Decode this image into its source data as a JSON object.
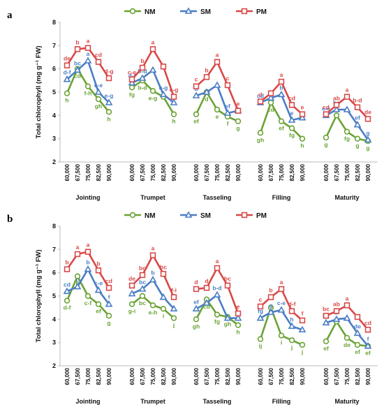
{
  "chart_data": [
    {
      "type": "line",
      "panel_label": "a",
      "ylabel": "Total chlorophyll (mg g⁻¹ FW)",
      "ylim": [
        2,
        8
      ],
      "yticks": [
        2,
        3,
        4,
        5,
        6,
        7,
        8
      ],
      "stages": [
        "Jointing",
        "Trumpet",
        "Tasseling",
        "Filling",
        "Maturity"
      ],
      "x": [
        "60,000",
        "67,500",
        "75,000",
        "82,500",
        "90,000"
      ],
      "legend": [
        "NM",
        "SM",
        "PM"
      ],
      "colors": {
        "NM": "#6aa334",
        "SM": "#4a7ec4",
        "PM": "#d94848"
      },
      "series": [
        {
          "name": "NM",
          "stages": [
            {
              "values": [
                4.95,
                6.0,
                5.25,
                4.7,
                4.15
              ],
              "letters": [
                "h",
                "cd",
                "f-h",
                "gh",
                "h"
              ]
            },
            {
              "values": [
                5.2,
                5.5,
                5.05,
                4.8,
                4.05
              ],
              "letters": [
                "fg",
                "b-d",
                "e-g",
                "",
                "h"
              ]
            },
            {
              "values": [
                4.05,
                5.0,
                4.25,
                3.95,
                3.75
              ],
              "letters": [
                "ef",
                "d",
                "e",
                "f",
                "g"
              ]
            },
            {
              "values": [
                3.25,
                4.55,
                3.75,
                3.45,
                3.0
              ],
              "letters": [
                "gh",
                "cd",
                "ef",
                "fg",
                "h"
              ]
            },
            {
              "values": [
                3.05,
                4.0,
                3.3,
                3.0,
                2.9
              ],
              "letters": [
                "g",
                "",
                "fg",
                "g",
                "g"
              ]
            }
          ]
        },
        {
          "name": "SM",
          "stages": [
            {
              "values": [
                5.55,
                5.95,
                6.35,
                5.0,
                4.55
              ],
              "letters": [
                "d-f",
                "bc",
                "a",
                "c-e",
                "e-g"
              ]
            },
            {
              "values": [
                5.4,
                5.6,
                5.95,
                4.9,
                4.55
              ],
              "letters": [
                "d-f",
                "b-d",
                "",
                "e-g",
                ""
              ]
            },
            {
              "values": [
                4.85,
                5.0,
                5.3,
                4.1,
                4.2
              ],
              "letters": [
                "d",
                "",
                "",
                "ef",
                ""
              ]
            },
            {
              "values": [
                4.55,
                4.75,
                4.9,
                3.8,
                3.9
              ],
              "letters": [
                "cd",
                "",
                "b",
                "e",
                ""
              ]
            },
            {
              "values": [
                4.0,
                4.25,
                4.25,
                3.6,
                2.95
              ],
              "letters": [
                "c-e",
                "bc",
                "",
                "ef",
                "g"
              ]
            }
          ]
        },
        {
          "name": "PM",
          "stages": [
            {
              "values": [
                6.15,
                6.85,
                6.9,
                6.3,
                5.6
              ],
              "letters": [
                "de",
                "b",
                "a",
                "cd",
                "d-g"
              ]
            },
            {
              "values": [
                5.55,
                6.05,
                6.85,
                6.1,
                4.8
              ],
              "letters": [
                "c-e",
                "b",
                "a",
                "",
                "e-g"
              ]
            },
            {
              "values": [
                5.25,
                5.65,
                6.3,
                5.3,
                4.2
              ],
              "letters": [
                "c",
                "b",
                "a",
                "c",
                "e"
              ]
            },
            {
              "values": [
                4.6,
                4.95,
                5.45,
                4.45,
                4.05
              ],
              "letters": [
                "d",
                "",
                "a",
                "cd",
                "e"
              ]
            },
            {
              "values": [
                4.05,
                4.45,
                4.8,
                4.35,
                3.85
              ],
              "letters": [
                "cd",
                "ab",
                "a",
                "b-d",
                "de"
              ]
            }
          ]
        }
      ]
    },
    {
      "type": "line",
      "panel_label": "b",
      "ylabel": "Total chlorophyll (mg g⁻¹ FW)",
      "ylim": [
        2,
        8
      ],
      "yticks": [
        2,
        3,
        4,
        5,
        6,
        7,
        8
      ],
      "stages": [
        "Jointing",
        "Trumpet",
        "Tasseling",
        "Filling",
        "Maturity"
      ],
      "x": [
        "60,000",
        "67,500",
        "75,000",
        "82,500",
        "90,000"
      ],
      "legend": [
        "NM",
        "SM",
        "PM"
      ],
      "colors": {
        "NM": "#6aa334",
        "SM": "#4a7ec4",
        "PM": "#d94848"
      },
      "series": [
        {
          "name": "NM",
          "stages": [
            {
              "values": [
                4.8,
                5.85,
                5.0,
                4.65,
                4.15
              ],
              "letters": [
                "d-f",
                "b",
                "c-f",
                "ef",
                "g"
              ]
            },
            {
              "values": [
                4.65,
                5.0,
                4.6,
                4.45,
                4.05
              ],
              "letters": [
                "g-i",
                "bc",
                "e-h",
                "i",
                "j"
              ]
            },
            {
              "values": [
                4.0,
                4.85,
                4.2,
                4.1,
                3.75
              ],
              "letters": [
                "gh",
                "cd",
                "fg",
                "gh",
                "h"
              ]
            },
            {
              "values": [
                3.15,
                4.5,
                3.3,
                3.1,
                2.9
              ],
              "letters": [
                "ij",
                "",
                "i",
                "j",
                "j"
              ]
            },
            {
              "values": [
                3.05,
                3.9,
                3.2,
                2.9,
                2.85
              ],
              "letters": [
                "ef",
                "",
                "de",
                "ef",
                "ef"
              ]
            }
          ]
        },
        {
          "name": "SM",
          "stages": [
            {
              "values": [
                5.2,
                5.4,
                6.15,
                5.25,
                4.65
              ],
              "letters": [
                "cd",
                "c",
                "b",
                "c-e",
                "f"
              ]
            },
            {
              "values": [
                5.1,
                5.3,
                5.7,
                4.95,
                4.45
              ],
              "letters": [
                "ef",
                "bc",
                "b",
                "",
                ""
              ]
            },
            {
              "values": [
                4.45,
                4.7,
                5.05,
                4.05,
                4.05
              ],
              "letters": [
                "ef",
                "",
                "b-d",
                "",
                ""
              ]
            },
            {
              "values": [
                4.05,
                4.3,
                4.4,
                3.7,
                3.55
              ],
              "letters": [
                "fg",
                "g",
                "c-e",
                "h",
                ""
              ]
            },
            {
              "values": [
                3.85,
                4.0,
                4.05,
                3.4,
                2.85
              ],
              "letters": [
                "bc",
                "b",
                "",
                "de",
                "f"
              ]
            }
          ]
        },
        {
          "name": "PM",
          "stages": [
            {
              "values": [
                6.15,
                6.8,
                6.9,
                6.1,
                5.35
              ],
              "letters": [
                "b",
                "a",
                "a",
                "b",
                "cd"
              ]
            },
            {
              "values": [
                5.45,
                5.9,
                6.75,
                5.95,
                4.95
              ],
              "letters": [
                "de",
                "bc",
                "a",
                "bc",
                "f-i"
              ]
            },
            {
              "values": [
                5.3,
                5.35,
                6.2,
                5.45,
                4.25
              ],
              "letters": [
                "d",
                "d",
                "a",
                "bc",
                "e"
              ]
            },
            {
              "values": [
                4.55,
                4.95,
                5.3,
                4.35,
                3.95
              ],
              "letters": [
                "c",
                "b",
                "a",
                "d-f",
                "f"
              ]
            },
            {
              "values": [
                4.15,
                4.35,
                4.6,
                4.1,
                3.55
              ],
              "letters": [
                "bc",
                "ab",
                "a",
                "",
                "cd"
              ]
            }
          ]
        }
      ]
    }
  ]
}
